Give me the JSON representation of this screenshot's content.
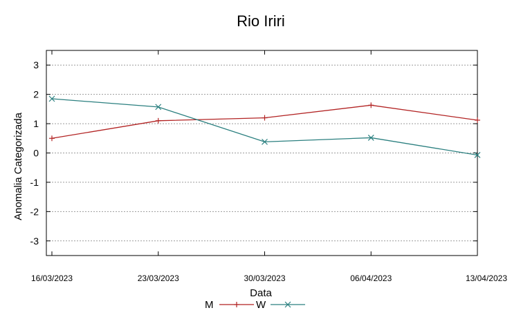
{
  "chart_data": {
    "type": "line",
    "title": "Rio Iriri",
    "xlabel": "Data",
    "ylabel": "Anomalia Categorizada",
    "categories": [
      "16/03/2023",
      "23/03/2023",
      "30/03/2023",
      "06/04/2023",
      "13/04/2023"
    ],
    "yticks": [
      "3",
      "2",
      "1",
      "0",
      "-1",
      "-2",
      "-3"
    ],
    "ylim": [
      -3.5,
      3.5
    ],
    "grid": true,
    "legend_position": "bottom",
    "series": [
      {
        "name": "M",
        "values": [
          0.5,
          1.1,
          1.2,
          1.63,
          1.12
        ],
        "color": "#b22222",
        "marker": "plus"
      },
      {
        "name": "W",
        "values": [
          1.85,
          1.57,
          0.38,
          0.52,
          -0.07
        ],
        "color": "#2a7f7f",
        "marker": "cross"
      }
    ]
  }
}
